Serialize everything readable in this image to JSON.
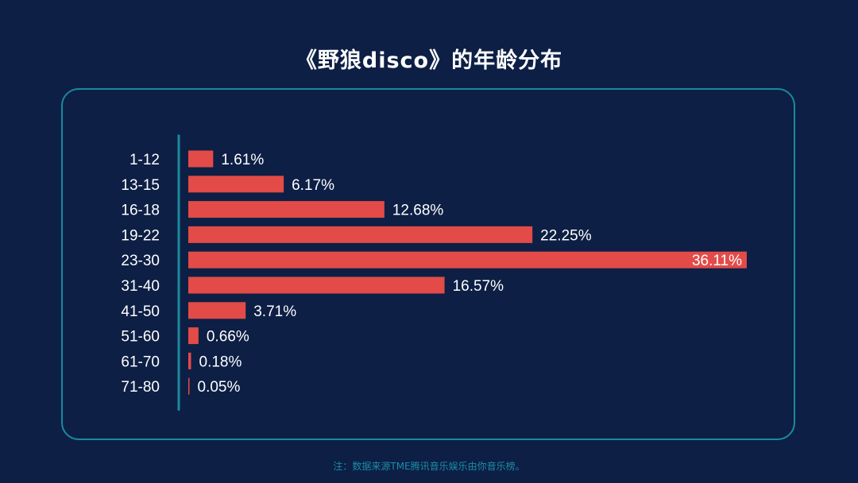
{
  "title": "《野狼disco》的年龄分布",
  "footnote": "注：数据来源TME腾讯音乐娱乐由你音乐榜。",
  "colors": {
    "background": "#0d1f45",
    "bar": "#e24b48",
    "panel_border": "#1a8a9c",
    "axis_line": "#1a8a9c",
    "text": "#ffffff",
    "footnote": "#1a8ea6"
  },
  "chart_data": {
    "type": "bar",
    "orientation": "horizontal",
    "categories": [
      "1-12",
      "13-15",
      "16-18",
      "19-22",
      "23-30",
      "31-40",
      "41-50",
      "51-60",
      "61-70",
      "71-80"
    ],
    "values": [
      1.61,
      6.17,
      12.68,
      22.25,
      36.11,
      16.57,
      3.71,
      0.66,
      0.18,
      0.05
    ],
    "value_labels": [
      "1.61%",
      "6.17%",
      "12.68%",
      "22.25%",
      "36.11%",
      "16.57%",
      "3.71%",
      "0.66%",
      "0.18%",
      "0.05%"
    ],
    "unit": "%",
    "xlim": [
      0,
      36.11
    ],
    "grid": false,
    "legend": "none"
  }
}
